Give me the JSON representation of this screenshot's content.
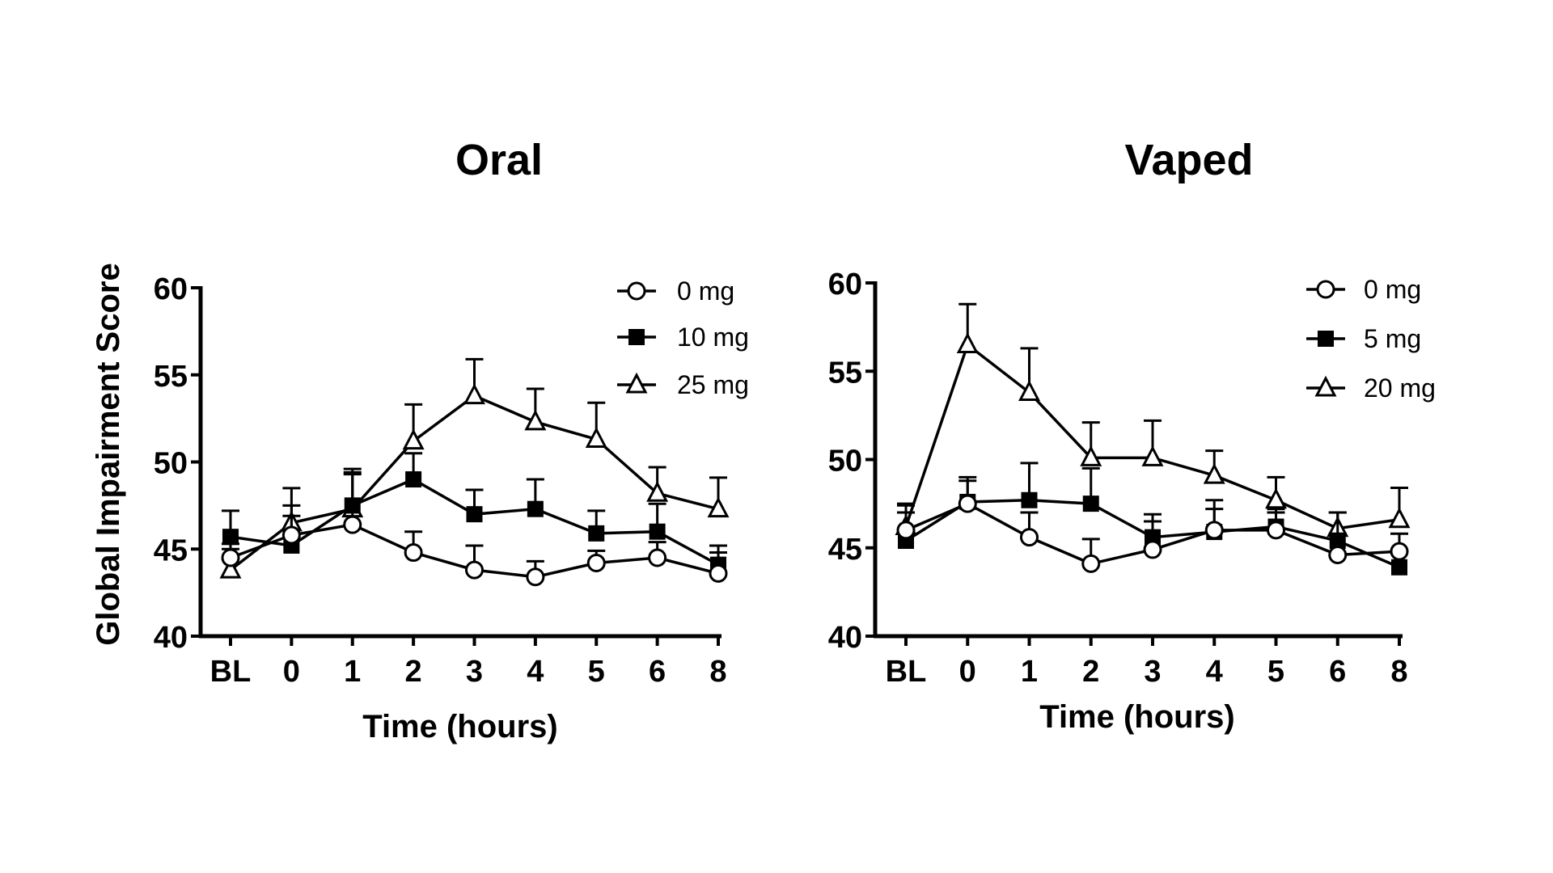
{
  "ylabel": "Global Impairment Score",
  "chart_data": [
    {
      "type": "line",
      "title": "Oral",
      "xlabel": "Time (hours)",
      "ylabel": "Global Impairment Score",
      "categories": [
        "BL",
        "0",
        "1",
        "2",
        "3",
        "4",
        "5",
        "6",
        "8"
      ],
      "ylim": [
        40,
        60
      ],
      "yticks": [
        "40",
        "45",
        "50",
        "55",
        "60"
      ],
      "legend_position": "top-right",
      "series": [
        {
          "name": "0 mg",
          "marker": "circle-open",
          "values": [
            44.5,
            45.8,
            46.4,
            44.8,
            43.8,
            43.4,
            44.2,
            44.5,
            43.6
          ],
          "error_upper": [
            45.3,
            47.5,
            49.3,
            46.0,
            45.2,
            44.3,
            44.9,
            45.4,
            44.8
          ]
        },
        {
          "name": "10 mg",
          "marker": "square-filled",
          "values": [
            45.7,
            45.2,
            47.5,
            49.0,
            47.0,
            47.3,
            45.9,
            46.0,
            44.1
          ],
          "error_upper": [
            47.2,
            46.9,
            49.6,
            50.5,
            48.4,
            49.0,
            47.2,
            47.6,
            45.2
          ]
        },
        {
          "name": "25 mg",
          "marker": "triangle-open",
          "values": [
            43.8,
            46.5,
            47.3,
            51.2,
            53.8,
            52.3,
            51.3,
            48.2,
            47.3
          ],
          "error_upper": [
            45.0,
            48.5,
            49.4,
            53.3,
            55.9,
            54.2,
            53.4,
            49.7,
            49.1
          ]
        }
      ]
    },
    {
      "type": "line",
      "title": "Vaped",
      "xlabel": "Time (hours)",
      "ylabel": "",
      "categories": [
        "BL",
        "0",
        "1",
        "2",
        "3",
        "4",
        "5",
        "6",
        "8"
      ],
      "ylim": [
        40,
        60
      ],
      "yticks": [
        "40",
        "45",
        "50",
        "55",
        "60"
      ],
      "legend_position": "top-right",
      "series": [
        {
          "name": "0 mg",
          "marker": "circle-open",
          "values": [
            46.0,
            47.5,
            45.6,
            44.1,
            44.9,
            46.0,
            46.0,
            44.6,
            44.8
          ],
          "error_upper": [
            47.0,
            48.8,
            47.0,
            45.5,
            46.5,
            47.2,
            47.0,
            45.8,
            45.8
          ]
        },
        {
          "name": "5 mg",
          "marker": "square-filled",
          "values": [
            45.4,
            47.6,
            47.7,
            47.5,
            45.6,
            45.9,
            46.2,
            45.4,
            43.9
          ],
          "error_upper": [
            47.4,
            49.0,
            49.8,
            49.5,
            46.9,
            47.7,
            47.2,
            47.0,
            44.8
          ]
        },
        {
          "name": "20 mg",
          "marker": "triangle-open",
          "values": [
            46.2,
            56.5,
            53.8,
            50.1,
            50.1,
            49.1,
            47.7,
            46.1,
            46.6
          ],
          "error_upper": [
            47.5,
            58.8,
            56.3,
            52.1,
            52.2,
            50.5,
            49.0,
            47.0,
            48.4
          ]
        }
      ]
    }
  ]
}
